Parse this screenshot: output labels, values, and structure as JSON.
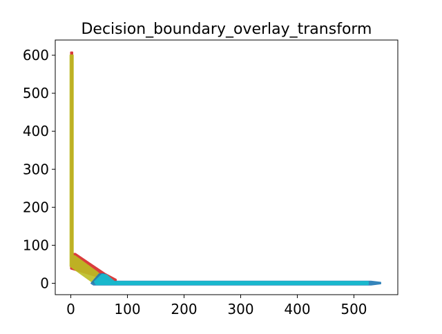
{
  "chart_data": {
    "type": "scatter",
    "title": "Decision_boundary_overlay_transform",
    "xlabel": "",
    "ylabel": "",
    "xlim": [
      -27.5,
      577.5
    ],
    "ylim": [
      -30,
      640
    ],
    "xticks": [
      0,
      100,
      200,
      300,
      400,
      500
    ],
    "yticks": [
      0,
      100,
      200,
      300,
      400,
      500,
      600
    ],
    "grid": false,
    "legend": "none",
    "colors": {
      "red_class": "#d62728",
      "olive_class": "#bcbd22",
      "blue_class": "#1f77b4",
      "cyan_class": "#17becf"
    },
    "regions": [
      {
        "color_key": "red_class",
        "points": [
          [
            0,
            608
          ],
          [
            3,
            608
          ],
          [
            3,
            78
          ],
          [
            8,
            78
          ],
          [
            60,
            26
          ],
          [
            80,
            10
          ],
          [
            80,
            3
          ],
          [
            0,
            38
          ]
        ]
      },
      {
        "color_key": "olive_class",
        "points": [
          [
            -1,
            600
          ],
          [
            4,
            600
          ],
          [
            4,
            72
          ],
          [
            7,
            72
          ],
          [
            46,
            30
          ],
          [
            52,
            22
          ],
          [
            46,
            2
          ],
          [
            40,
            1
          ],
          [
            -1,
            45
          ]
        ]
      },
      {
        "color_key": "blue_class",
        "points": [
          [
            50,
            24
          ],
          [
            58,
            25
          ],
          [
            72,
            5
          ],
          [
            530,
            5
          ],
          [
            547,
            2
          ],
          [
            547,
            -1
          ],
          [
            530,
            -4
          ],
          [
            40,
            -4
          ],
          [
            36,
            0
          ]
        ]
      },
      {
        "color_key": "cyan_class",
        "points": [
          [
            42,
            4
          ],
          [
            55,
            23
          ],
          [
            63,
            22
          ],
          [
            77,
            4
          ],
          [
            525,
            4
          ],
          [
            525,
            -3
          ],
          [
            45,
            -3
          ]
        ]
      }
    ]
  }
}
